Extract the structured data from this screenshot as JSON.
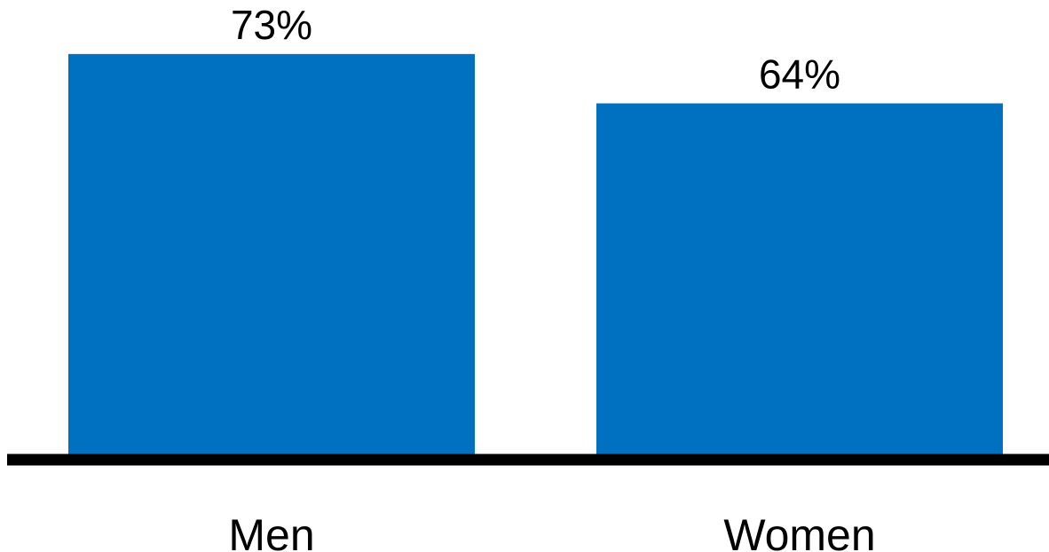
{
  "chart_data": {
    "type": "bar",
    "categories": [
      "Men",
      "Women"
    ],
    "values": [
      73,
      64
    ],
    "value_labels": [
      "73%",
      "64%"
    ],
    "title": "",
    "xlabel": "",
    "ylabel": "",
    "ylim": [
      0,
      100
    ],
    "grid": false,
    "legend": "none",
    "colors": {
      "bar": "#0070C0",
      "axis": "#000000",
      "text": "#000000"
    }
  }
}
